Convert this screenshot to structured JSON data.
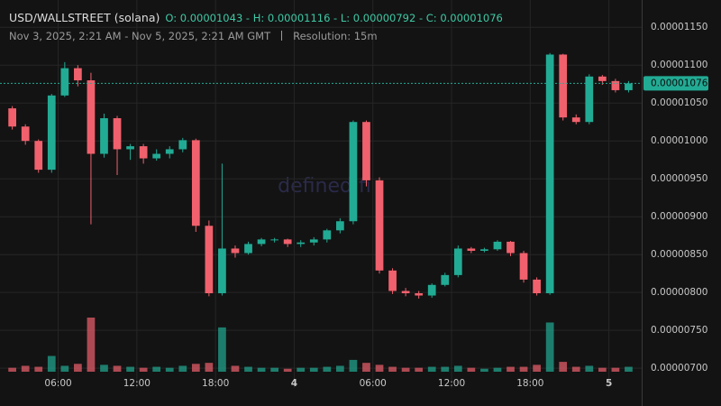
{
  "chart_data": {
    "type": "candlestick",
    "title": "USD/WALLSTREET (solana)",
    "summary": "O: 0.00001043 - H: 0.00001116 - L: 0.00000792 - C: 0.00001076",
    "subtitle": "Nov 3, 2025, 2:21 AM - Nov 5, 2025, 2:21 AM GMT",
    "resolution": "Resolution: 15m",
    "watermark": "defined.fi",
    "up_color": "#22ab94",
    "down_color": "#f0616d",
    "grid": true,
    "x": [
      2.5,
      3.5,
      4.5,
      5.5,
      6.5,
      7.5,
      8.5,
      9.5,
      10.5,
      11.5,
      12.5,
      13.5,
      14.5,
      15.5,
      16.5,
      17.5,
      18.5,
      19.5,
      20.5,
      21.5,
      22.5,
      23.5,
      24.5,
      25.5,
      26.5,
      27.5,
      28.5,
      29.5,
      30.5,
      31.5,
      32.5,
      33.5,
      34.5,
      35.5,
      36.5,
      37.5,
      38.5,
      39.5,
      40.5,
      41.5,
      42.5,
      43.5,
      44.5,
      45.5,
      46.5,
      47.5,
      48.5,
      49.5
    ],
    "open": [
      1.043e-05,
      1.019e-05,
      1e-05,
      9.62e-06,
      1.06e-05,
      1.096e-05,
      1.08e-05,
      9.83e-06,
      1.03e-05,
      9.89e-06,
      9.93e-06,
      9.77e-06,
      9.83e-06,
      9.89e-06,
      1.001e-05,
      8.88e-06,
      7.99e-06,
      8.58e-06,
      8.52e-06,
      8.64e-06,
      8.7e-06,
      8.7e-06,
      8.64e-06,
      8.66e-06,
      8.7e-06,
      8.82e-06,
      8.94e-06,
      1.025e-05,
      9.48e-06,
      8.29e-06,
      8.02e-06,
      7.99e-06,
      7.96e-06,
      8.1e-06,
      8.23e-06,
      8.58e-06,
      8.55e-06,
      8.57e-06,
      8.67e-06,
      8.52e-06,
      8.17e-06,
      7.99e-06,
      1.114e-05,
      1.031e-05,
      1.025e-05,
      1.085e-05,
      1.079e-05,
      1.067e-05
    ],
    "high": [
      1.046e-05,
      1.022e-05,
      1.002e-05,
      1.062e-05,
      1.104e-05,
      1.1e-05,
      1.09e-05,
      1.036e-05,
      1.033e-05,
      9.96e-06,
      9.96e-06,
      9.89e-06,
      9.93e-06,
      1.004e-05,
      1.003e-05,
      8.95e-06,
      9.7e-06,
      8.62e-06,
      8.67e-06,
      8.72e-06,
      8.72e-06,
      8.71e-06,
      8.69e-06,
      8.73e-06,
      8.84e-06,
      8.98e-06,
      1.027e-05,
      1.027e-05,
      9.52e-06,
      8.32e-06,
      8.06e-06,
      8.02e-06,
      8.12e-06,
      8.26e-06,
      8.62e-06,
      8.6e-06,
      8.59e-06,
      8.69e-06,
      8.68e-06,
      8.55e-06,
      8.2e-06,
      1.116e-05,
      1.115e-05,
      1.035e-05,
      1.088e-05,
      1.087e-05,
      1.082e-05,
      1.079e-05
    ],
    "low": [
      1.015e-05,
      9.95e-06,
      9.58e-06,
      9.58e-06,
      1.058e-05,
      1.072e-05,
      8.9e-06,
      9.78e-06,
      9.55e-06,
      9.75e-06,
      9.7e-06,
      9.74e-06,
      9.77e-06,
      9.85e-06,
      8.8e-06,
      7.95e-06,
      7.96e-06,
      8.46e-06,
      8.5e-06,
      8.61e-06,
      8.66e-06,
      8.6e-06,
      8.6e-06,
      8.62e-06,
      8.66e-06,
      8.78e-06,
      8.9e-06,
      9.4e-06,
      8.25e-06,
      7.98e-06,
      7.95e-06,
      7.92e-06,
      7.93e-06,
      8.08e-06,
      8.2e-06,
      8.52e-06,
      8.53e-06,
      8.55e-06,
      8.48e-06,
      8.13e-06,
      7.96e-06,
      7.97e-06,
      1.027e-05,
      1.022e-05,
      1.022e-05,
      1.074e-05,
      1.064e-05,
      1.064e-05
    ],
    "close": [
      1.019e-05,
      1e-05,
      9.62e-06,
      1.06e-05,
      1.096e-05,
      1.08e-05,
      9.83e-06,
      1.03e-05,
      9.89e-06,
      9.93e-06,
      9.77e-06,
      9.83e-06,
      9.89e-06,
      1.001e-05,
      8.88e-06,
      7.99e-06,
      8.58e-06,
      8.52e-06,
      8.64e-06,
      8.7e-06,
      8.7e-06,
      8.64e-06,
      8.66e-06,
      8.7e-06,
      8.82e-06,
      8.94e-06,
      1.025e-05,
      9.48e-06,
      8.29e-06,
      8.02e-06,
      7.99e-06,
      7.96e-06,
      8.1e-06,
      8.23e-06,
      8.58e-06,
      8.55e-06,
      8.57e-06,
      8.67e-06,
      8.52e-06,
      8.17e-06,
      7.99e-06,
      1.114e-05,
      1.031e-05,
      1.025e-05,
      1.085e-05,
      1.079e-05,
      1.067e-05,
      1.076e-05
    ],
    "volume": [
      4,
      6,
      5,
      16,
      6,
      8,
      55,
      7,
      6,
      5,
      4,
      5,
      4,
      6,
      8,
      9,
      45,
      6,
      5,
      4,
      4,
      3,
      4,
      4,
      5,
      6,
      12,
      9,
      7,
      5,
      4,
      4,
      5,
      5,
      6,
      4,
      3,
      4,
      5,
      5,
      7,
      50,
      10,
      5,
      6,
      4,
      4,
      5
    ],
    "last_price": {
      "value": 1.076e-05,
      "label": "0.00001076"
    },
    "xlim": [
      2.25,
      50.5
    ],
    "xticks": [
      {
        "value": 6,
        "label": "06:00"
      },
      {
        "value": 12,
        "label": "12:00"
      },
      {
        "value": 18,
        "label": "18:00"
      },
      {
        "value": 24,
        "label": "4"
      },
      {
        "value": 30,
        "label": "06:00"
      },
      {
        "value": 36,
        "label": "12:00"
      },
      {
        "value": 42,
        "label": "18:00"
      },
      {
        "value": 48,
        "label": "5"
      }
    ],
    "ylim": [
      6.74e-06,
      1.186e-05
    ],
    "yticks": [
      {
        "value": 1.15e-05,
        "label": "0.00001150"
      },
      {
        "value": 1.1e-05,
        "label": "0.00001100"
      },
      {
        "value": 1.05e-05,
        "label": "0.00001050"
      },
      {
        "value": 1e-05,
        "label": "0.00001000"
      },
      {
        "value": 9.5e-06,
        "label": "0.00000950"
      },
      {
        "value": 9e-06,
        "label": "0.00000900"
      },
      {
        "value": 8.5e-06,
        "label": "0.00000850"
      },
      {
        "value": 8e-06,
        "label": "0.00000800"
      },
      {
        "value": 7.5e-06,
        "label": "0.00000750"
      },
      {
        "value": 7e-06,
        "label": "0.00000700"
      }
    ]
  }
}
